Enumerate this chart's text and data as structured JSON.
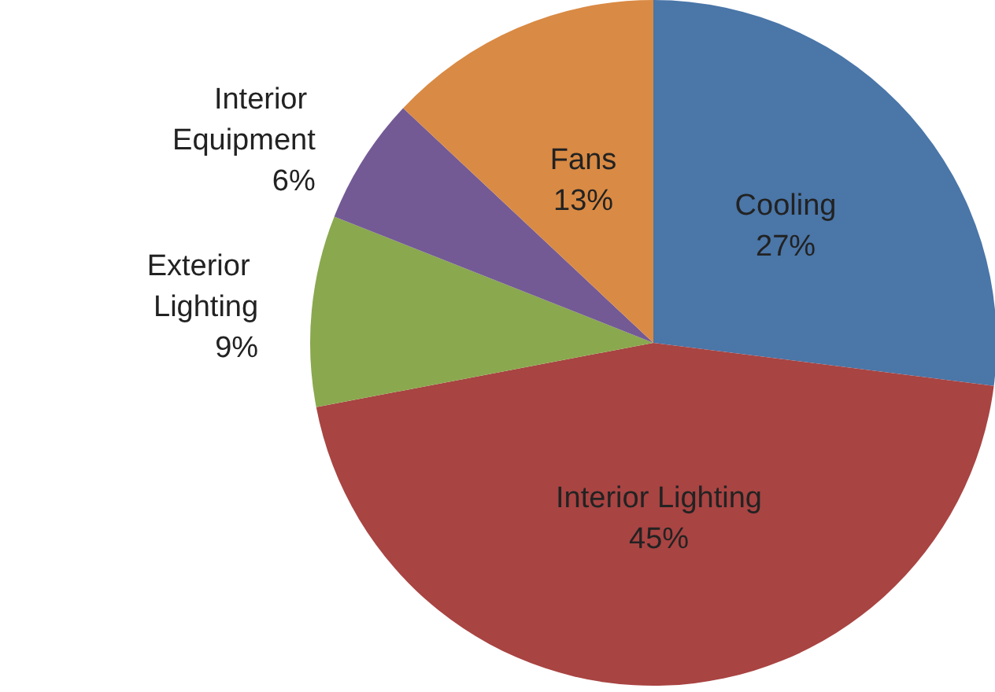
{
  "chart_data": {
    "type": "pie",
    "categories": [
      "Cooling",
      "Interior Lighting",
      "Exterior Lighting",
      "Interior Equipment",
      "Fans"
    ],
    "values": [
      27,
      45,
      9,
      6,
      13
    ],
    "value_labels": [
      "27%",
      "45%",
      "9%",
      "6%",
      "13%"
    ],
    "colors": [
      "#4a76a8",
      "#a84442",
      "#8aa84e",
      "#735a95",
      "#d98a44"
    ],
    "legend": false
  }
}
